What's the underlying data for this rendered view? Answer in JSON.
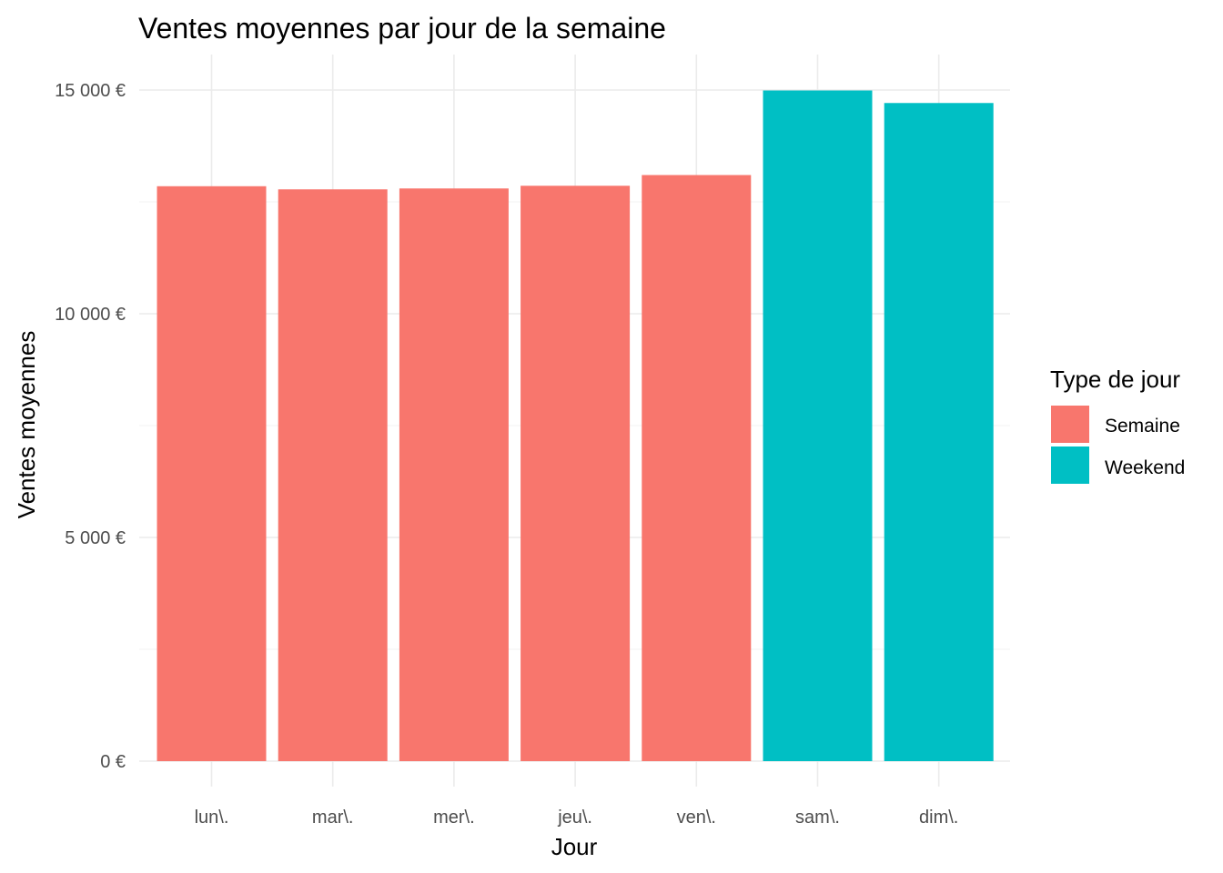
{
  "chart_data": {
    "type": "bar",
    "title": "Ventes moyennes par jour de la semaine",
    "xlabel": "Jour",
    "ylabel": "Ventes moyennes",
    "categories": [
      "lun\\.",
      "mar\\.",
      "mer\\.",
      "jeu\\.",
      "ven\\.",
      "sam\\.",
      "dim\\."
    ],
    "values": [
      12850,
      12780,
      12800,
      12860,
      13100,
      14990,
      14710
    ],
    "groups": [
      "Semaine",
      "Semaine",
      "Semaine",
      "Semaine",
      "Semaine",
      "Weekend",
      "Weekend"
    ],
    "ylim": [
      0,
      15000
    ],
    "yticks": [
      0,
      5000,
      10000,
      15000
    ],
    "ytick_labels": [
      "0 €",
      "5 000 €",
      "10 000 €",
      "15 000 €"
    ],
    "grid": true,
    "legend": {
      "title": "Type de jour",
      "placement": "right",
      "entries": [
        {
          "label": "Semaine",
          "color": "#F8766D"
        },
        {
          "label": "Weekend",
          "color": "#00BFC4"
        }
      ]
    }
  }
}
